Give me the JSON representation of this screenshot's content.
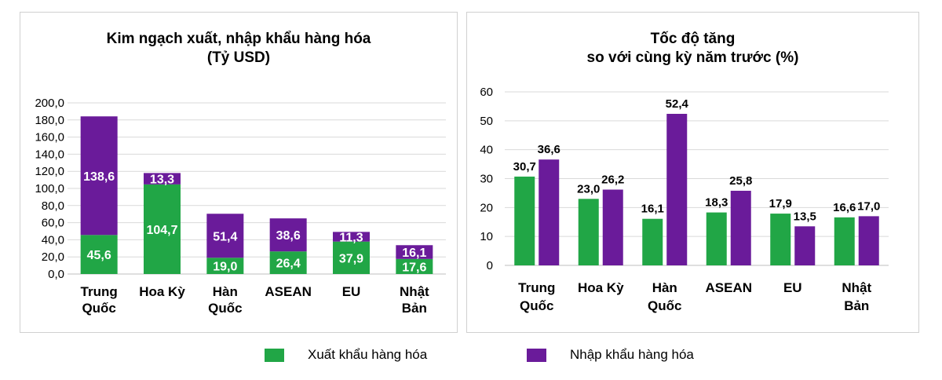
{
  "colors": {
    "export": "#21a646",
    "import": "#6a1b9a"
  },
  "legend": {
    "export": "Xuất khẩu hàng hóa",
    "import": "Nhập khẩu hàng hóa"
  },
  "chart_data": [
    {
      "type": "bar",
      "stacked": true,
      "title_line1": "Kim ngạch xuất, nhập khẩu hàng hóa",
      "title_line2": "(Tỷ USD)",
      "categories": [
        [
          "Trung",
          "Quốc"
        ],
        [
          "Hoa Kỳ"
        ],
        [
          "Hàn",
          "Quốc"
        ],
        [
          "ASEAN"
        ],
        [
          "EU"
        ],
        [
          "Nhật",
          "Bản"
        ]
      ],
      "series": [
        {
          "name": "Xuất khẩu hàng hóa",
          "values": [
            45.6,
            104.7,
            19.0,
            26.4,
            37.9,
            17.6
          ],
          "labels": [
            "45,6",
            "104,7",
            "19,0",
            "26,4",
            "37,9",
            "17,6"
          ]
        },
        {
          "name": "Nhập khẩu hàng hóa",
          "values": [
            138.6,
            13.3,
            51.4,
            38.6,
            11.3,
            16.1
          ],
          "labels": [
            "138,6",
            "13,3",
            "51,4",
            "38,6",
            "11,3",
            "16,1"
          ]
        }
      ],
      "ylim": [
        0,
        200
      ],
      "yticks": [
        "0,0",
        "20,0",
        "40,0",
        "60,0",
        "80,0",
        "100,0",
        "120,0",
        "140,0",
        "160,0",
        "180,0",
        "200,0"
      ],
      "grid": true
    },
    {
      "type": "bar",
      "stacked": false,
      "title_line1": "Tốc độ tăng",
      "title_line2": "so với cùng kỳ năm trước (%)",
      "categories": [
        [
          "Trung",
          "Quốc"
        ],
        [
          "Hoa Kỳ"
        ],
        [
          "Hàn",
          "Quốc"
        ],
        [
          "ASEAN"
        ],
        [
          "EU"
        ],
        [
          "Nhật",
          "Bản"
        ]
      ],
      "series": [
        {
          "name": "Xuất khẩu hàng hóa",
          "values": [
            30.7,
            23.0,
            16.1,
            18.3,
            17.9,
            16.6
          ],
          "labels": [
            "30,7",
            "23,0",
            "16,1",
            "18,3",
            "17,9",
            "16,6"
          ]
        },
        {
          "name": "Nhập khẩu hàng hóa",
          "values": [
            36.6,
            26.2,
            52.4,
            25.8,
            13.5,
            17.0
          ],
          "labels": [
            "36,6",
            "26,2",
            "52,4",
            "25,8",
            "13,5",
            "17,0"
          ]
        }
      ],
      "ylim": [
        0,
        60
      ],
      "yticks": [
        "0",
        "10",
        "20",
        "30",
        "40",
        "50",
        "60"
      ],
      "grid": true
    }
  ]
}
